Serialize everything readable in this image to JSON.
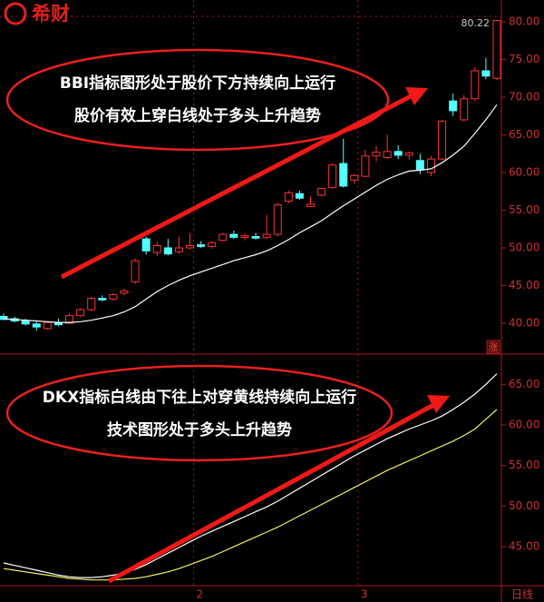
{
  "logo": "希财",
  "period": "日线",
  "chart_data": [
    {
      "type": "candlestick",
      "up_color": "#ff3232",
      "down_color": "#54ffff",
      "line_color": "#ffffff",
      "annotations": [
        "BBI指标图形处于股价下方持续向上运行",
        "股价有效上穿白线处于多头上升趋势"
      ],
      "max_label": "80.22",
      "badge": "涨",
      "categories": [
        null,
        null,
        null,
        null,
        null,
        null,
        null,
        null,
        null,
        null,
        null,
        null,
        null,
        null,
        null,
        null,
        null,
        null,
        "2",
        null,
        null,
        null,
        null,
        null,
        null,
        null,
        null,
        null,
        null,
        null,
        null,
        null,
        null,
        "3",
        null,
        null,
        null,
        null,
        null,
        null,
        null,
        null,
        null,
        null,
        null,
        null
      ],
      "open": [
        40.9,
        40.6,
        40.3,
        39.9,
        39.3,
        40.0,
        40.0,
        41.0,
        41.8,
        43.3,
        43.2,
        44.0,
        45.5,
        51.2,
        49.4,
        50.0,
        49.5,
        50.0,
        50.4,
        50.2,
        51.0,
        51.8,
        51.4,
        51.5,
        51.4,
        51.8,
        56.2,
        57.2,
        55.5,
        57.0,
        58.0,
        61.2,
        59.0,
        59.5,
        62.2,
        62.0,
        62.8,
        62.3,
        61.6,
        60.0,
        61.8,
        69.5,
        67.0,
        69.8,
        73.5,
        72.5
      ],
      "high": [
        41.3,
        40.9,
        40.6,
        40.2,
        40.3,
        40.6,
        41.3,
        42.0,
        43.5,
        43.7,
        44.0,
        44.6,
        48.6,
        51.5,
        50.8,
        51.2,
        51.5,
        52.0,
        50.9,
        50.9,
        52.0,
        52.3,
        51.9,
        52.0,
        54.4,
        56.0,
        57.6,
        57.6,
        56.8,
        58.0,
        61.2,
        64.5,
        59.8,
        63.0,
        63.5,
        65.0,
        63.6,
        62.8,
        62.5,
        62.2,
        67.0,
        70.5,
        70.3,
        74.0,
        75.2,
        80.22
      ],
      "low": [
        40.4,
        40.1,
        39.7,
        39.0,
        39.1,
        39.6,
        39.9,
        40.8,
        41.6,
        42.9,
        43.0,
        43.7,
        45.2,
        49.1,
        48.9,
        49.0,
        49.2,
        49.8,
        50.0,
        49.9,
        50.8,
        51.2,
        51.0,
        51.1,
        51.2,
        51.5,
        55.9,
        56.4,
        55.4,
        56.8,
        57.9,
        58.0,
        58.5,
        59.4,
        61.5,
        61.8,
        61.8,
        61.7,
        59.8,
        59.5,
        61.6,
        67.5,
        66.8,
        69.5,
        72.4,
        72.3
      ],
      "close": [
        40.5,
        40.3,
        39.9,
        39.5,
        40.1,
        39.8,
        41.0,
        41.8,
        43.3,
        43.1,
        43.8,
        44.3,
        48.3,
        49.6,
        50.3,
        49.2,
        50.0,
        50.3,
        50.2,
        50.7,
        51.8,
        51.4,
        51.6,
        51.3,
        51.8,
        55.7,
        57.3,
        56.6,
        55.8,
        57.9,
        61.0,
        58.2,
        59.6,
        62.2,
        62.7,
        62.8,
        62.3,
        62.6,
        60.4,
        61.8,
        66.8,
        68.2,
        69.8,
        73.5,
        72.8,
        80.2
      ],
      "line": [
        40.6,
        40.5,
        40.4,
        40.3,
        40.2,
        40.1,
        40.1,
        40.2,
        40.4,
        40.7,
        41.0,
        41.5,
        42.2,
        43.2,
        44.2,
        45.0,
        45.7,
        46.3,
        46.8,
        47.3,
        47.8,
        48.3,
        48.7,
        49.1,
        49.6,
        50.3,
        51.1,
        52.0,
        52.8,
        53.6,
        54.6,
        55.6,
        56.5,
        57.4,
        58.3,
        59.1,
        59.7,
        60.2,
        60.3,
        60.5,
        61.3,
        62.3,
        63.5,
        65.2,
        67.0,
        69.0
      ],
      "ylim": [
        35.9,
        82.9
      ],
      "yticks": [
        {
          "value": 40,
          "label": "40.00"
        },
        {
          "value": 45,
          "label": "45.00"
        },
        {
          "value": 50,
          "label": "50.00"
        },
        {
          "value": 55,
          "label": "55.00"
        },
        {
          "value": 60,
          "label": "60.00"
        },
        {
          "value": 65,
          "label": "65.00"
        },
        {
          "value": 70,
          "label": "70.00"
        },
        {
          "value": 75,
          "label": "75.00"
        },
        {
          "value": 80,
          "label": "80.00"
        }
      ]
    },
    {
      "type": "line",
      "annotations": [
        "DKX指标白线由下往上对穿黄线持续向上运行",
        "技术图形处于多头上升趋势"
      ],
      "series": [
        {
          "color": "#ffffff",
          "values": [
            43.0,
            42.7,
            42.4,
            42.1,
            41.8,
            41.5,
            41.3,
            41.2,
            41.2,
            41.3,
            41.5,
            41.8,
            42.2,
            42.8,
            43.5,
            44.2,
            44.9,
            45.6,
            46.3,
            46.9,
            47.5,
            48.1,
            48.7,
            49.3,
            49.9,
            50.6,
            51.4,
            52.2,
            53.0,
            53.8,
            54.6,
            55.4,
            56.2,
            56.9,
            57.6,
            58.3,
            58.9,
            59.5,
            60.0,
            60.5,
            61.1,
            61.9,
            62.8,
            63.8,
            65.0,
            66.3
          ]
        },
        {
          "color": "#f0f060",
          "values": [
            42.3,
            42.1,
            41.9,
            41.7,
            41.5,
            41.3,
            41.1,
            41.0,
            40.9,
            40.9,
            40.9,
            41.0,
            41.1,
            41.3,
            41.6,
            41.9,
            42.3,
            42.8,
            43.3,
            43.8,
            44.4,
            45.0,
            45.6,
            46.2,
            46.8,
            47.4,
            48.1,
            48.8,
            49.5,
            50.2,
            50.9,
            51.6,
            52.3,
            53.0,
            53.7,
            54.4,
            55.0,
            55.6,
            56.2,
            56.8,
            57.4,
            58.0,
            58.7,
            59.5,
            60.7,
            61.9
          ]
        }
      ],
      "ylim": [
        40.2,
        68.5
      ],
      "yticks": [
        {
          "value": 45,
          "label": "45.00"
        },
        {
          "value": 50,
          "label": "50.00"
        },
        {
          "value": 55,
          "label": "55.00"
        },
        {
          "value": 60,
          "label": "60.00"
        },
        {
          "value": 65,
          "label": "65.00"
        }
      ]
    }
  ]
}
